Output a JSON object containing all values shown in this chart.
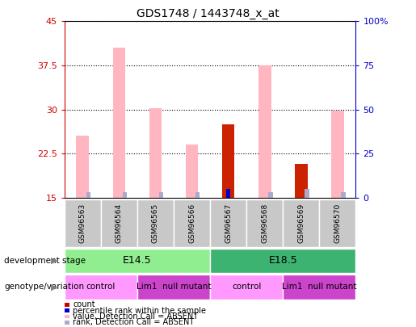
{
  "title": "GDS1748 / 1443748_x_at",
  "samples": [
    "GSM96563",
    "GSM96564",
    "GSM96565",
    "GSM96566",
    "GSM96567",
    "GSM96568",
    "GSM96569",
    "GSM96570"
  ],
  "pink_values": [
    25.5,
    40.5,
    30.2,
    24.0,
    0,
    37.5,
    0,
    29.8
  ],
  "red_values": [
    0,
    0,
    0,
    0,
    27.5,
    0,
    20.8,
    0
  ],
  "blue_values_raw": [
    0,
    0,
    0,
    0,
    1.5,
    0,
    0,
    0
  ],
  "blue_dot_samples": [
    4
  ],
  "light_blue_raw": [
    1.0,
    1.0,
    1.0,
    1.0,
    0,
    1.0,
    1.5,
    1.0
  ],
  "ylim_left": [
    15,
    45
  ],
  "ylim_right": [
    0,
    100
  ],
  "yticks_left": [
    15,
    22.5,
    30,
    37.5,
    45
  ],
  "ytick_labels_left": [
    "15",
    "22.5",
    "30",
    "37.5",
    "45"
  ],
  "yticks_right_vals": [
    0,
    25,
    50,
    75,
    100
  ],
  "ytick_labels_right": [
    "0",
    "25",
    "50",
    "75",
    "100%"
  ],
  "dev_stage_groups": [
    {
      "label": "E14.5",
      "start": 0,
      "end": 4,
      "color": "#90EE90"
    },
    {
      "label": "E18.5",
      "start": 4,
      "end": 8,
      "color": "#3CB371"
    }
  ],
  "genotype_groups": [
    {
      "label": "control",
      "start": 0,
      "end": 2,
      "color": "#FF99FF"
    },
    {
      "label": "Lim1  null mutant",
      "start": 2,
      "end": 4,
      "color": "#CC44CC"
    },
    {
      "label": "control",
      "start": 4,
      "end": 6,
      "color": "#FF99FF"
    },
    {
      "label": "Lim1  null mutant",
      "start": 6,
      "end": 8,
      "color": "#CC44CC"
    }
  ],
  "legend_items": [
    {
      "label": "count",
      "color": "#CC0000"
    },
    {
      "label": "percentile rank within the sample",
      "color": "#0000CC"
    },
    {
      "label": "value, Detection Call = ABSENT",
      "color": "#FFB6C1"
    },
    {
      "label": "rank, Detection Call = ABSENT",
      "color": "#AAAACC"
    }
  ],
  "bar_width": 0.35,
  "pink_color": "#FFB6C1",
  "red_color": "#CC2200",
  "blue_color": "#0000CC",
  "light_blue_color": "#AAAACC",
  "left_axis_color": "#CC0000",
  "right_axis_color": "#0000CC",
  "background_label": "#C8C8C8"
}
